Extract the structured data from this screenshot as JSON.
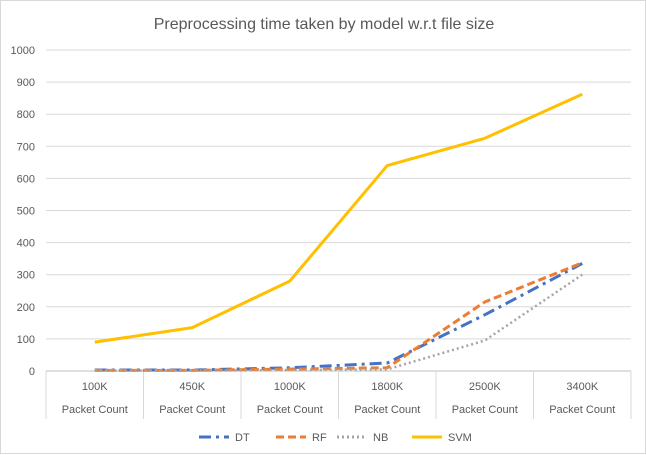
{
  "chart_data": {
    "type": "line",
    "title": "Preprocessing time taken by model w.r.t file size",
    "categories": [
      "100K",
      "450K",
      "1000K",
      "1800K",
      "2500K",
      "3400K"
    ],
    "category_group": "Packet Count",
    "ylim": [
      0,
      1000
    ],
    "yticks": [
      0,
      100,
      200,
      300,
      400,
      500,
      600,
      700,
      800,
      900,
      1000
    ],
    "grid": true,
    "legend_position": "bottom",
    "series": [
      {
        "name": "DT",
        "values": [
          3,
          3,
          10,
          25,
          175,
          335
        ],
        "color": "#4472c4",
        "dash": "long-dash-dot"
      },
      {
        "name": "RF",
        "values": [
          2,
          2,
          6,
          10,
          215,
          337
        ],
        "color": "#ed7d31",
        "dash": "dash"
      },
      {
        "name": "NB",
        "values": [
          1,
          1,
          3,
          5,
          95,
          300
        ],
        "color": "#a5a5a5",
        "dash": "dot"
      },
      {
        "name": "SVM",
        "values": [
          90,
          135,
          280,
          640,
          725,
          862
        ],
        "color": "#ffc000",
        "dash": "solid"
      }
    ]
  }
}
